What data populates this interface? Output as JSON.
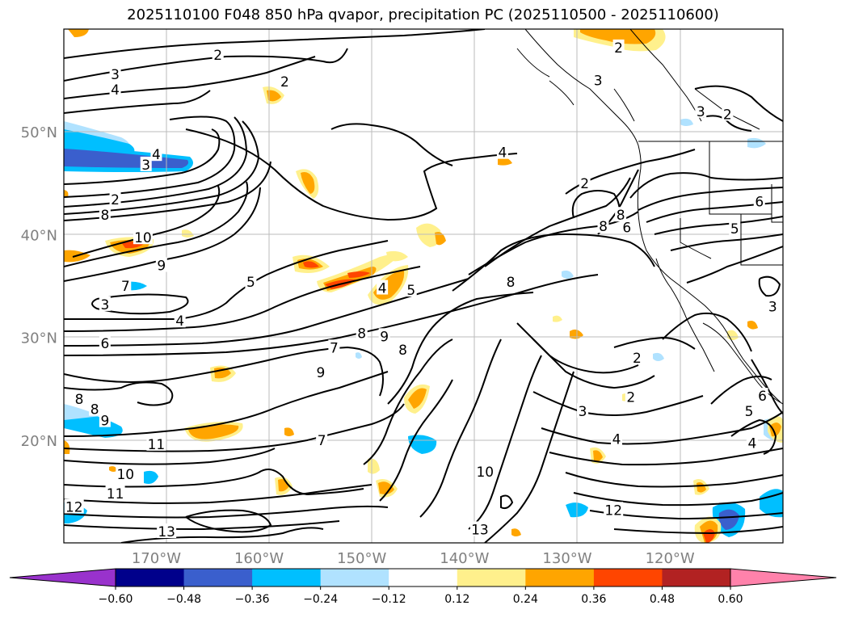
{
  "title": "2025110100 F048 850 hPa qvapor, precipitation PC (2025110500 - 2025110600)",
  "map": {
    "lon_range": [
      -179,
      -109
    ],
    "lat_range": [
      10,
      60
    ],
    "lon_ticks": [
      {
        "lon": -170,
        "label": "170°W"
      },
      {
        "lon": -160,
        "label": "160°W"
      },
      {
        "lon": -150,
        "label": "150°W"
      },
      {
        "lon": -140,
        "label": "140°W"
      },
      {
        "lon": -130,
        "label": "130°W"
      },
      {
        "lon": -120,
        "label": "120°W"
      }
    ],
    "lat_ticks": [
      {
        "lat": 20,
        "label": "20°N"
      },
      {
        "lat": 30,
        "label": "30°N"
      },
      {
        "lat": 40,
        "label": "40°N"
      },
      {
        "lat": 50,
        "label": "50°N"
      }
    ],
    "grid": true,
    "contour_color": "#000000",
    "coast_color": "#000000",
    "contour_labels": [
      {
        "text": "2",
        "lon": -164,
        "lat": 57.5
      },
      {
        "text": "2",
        "lon": -157.5,
        "lat": 54.9
      },
      {
        "text": "3",
        "lon": -174,
        "lat": 55.6
      },
      {
        "text": "4",
        "lon": -174,
        "lat": 54.1
      },
      {
        "text": "4",
        "lon": -170,
        "lat": 47.8
      },
      {
        "text": "3",
        "lon": -171,
        "lat": 46.8
      },
      {
        "text": "2",
        "lon": -174,
        "lat": 43.4
      },
      {
        "text": "8",
        "lon": -175,
        "lat": 41.9
      },
      {
        "text": "10",
        "lon": -171.3,
        "lat": 39.7
      },
      {
        "text": "9",
        "lon": -169.5,
        "lat": 37.0
      },
      {
        "text": "7",
        "lon": -173,
        "lat": 35.0
      },
      {
        "text": "3",
        "lon": -175,
        "lat": 33.2
      },
      {
        "text": "4",
        "lon": -167.7,
        "lat": 31.6
      },
      {
        "text": "6",
        "lon": -175,
        "lat": 29.4
      },
      {
        "text": "5",
        "lon": -160.8,
        "lat": 35.4
      },
      {
        "text": "4",
        "lon": -148,
        "lat": 34.8
      },
      {
        "text": "5",
        "lon": -145.2,
        "lat": 34.6
      },
      {
        "text": "7",
        "lon": -152.7,
        "lat": 29.0
      },
      {
        "text": "8",
        "lon": -150,
        "lat": 30.4
      },
      {
        "text": "9",
        "lon": -147.8,
        "lat": 30.1
      },
      {
        "text": "8",
        "lon": -146,
        "lat": 28.8
      },
      {
        "text": "9",
        "lon": -154,
        "lat": 26.6
      },
      {
        "text": "8",
        "lon": -177.5,
        "lat": 24.0
      },
      {
        "text": "8",
        "lon": -176,
        "lat": 23.0
      },
      {
        "text": "9",
        "lon": -175,
        "lat": 21.9
      },
      {
        "text": "11",
        "lon": -170,
        "lat": 19.6
      },
      {
        "text": "10",
        "lon": -173,
        "lat": 16.7
      },
      {
        "text": "11",
        "lon": -174,
        "lat": 14.8
      },
      {
        "text": "12",
        "lon": -178,
        "lat": 13.5
      },
      {
        "text": "13",
        "lon": -169,
        "lat": 11.1
      },
      {
        "text": "13",
        "lon": -138.5,
        "lat": 11.3
      },
      {
        "text": "10",
        "lon": -138,
        "lat": 16.9
      },
      {
        "text": "12",
        "lon": -125.5,
        "lat": 13.2
      },
      {
        "text": "8",
        "lon": -135.5,
        "lat": 35.4
      },
      {
        "text": "4",
        "lon": -136.3,
        "lat": 48.0
      },
      {
        "text": "3",
        "lon": -127,
        "lat": 55.0
      },
      {
        "text": "2",
        "lon": -125,
        "lat": 58.2
      },
      {
        "text": "2",
        "lon": -128.3,
        "lat": 45.0
      },
      {
        "text": "3",
        "lon": -117,
        "lat": 52.0
      },
      {
        "text": "2",
        "lon": -114.4,
        "lat": 51.7
      },
      {
        "text": "8",
        "lon": -126.5,
        "lat": 40.8
      },
      {
        "text": "8",
        "lon": -124.8,
        "lat": 41.9
      },
      {
        "text": "6",
        "lon": -124.2,
        "lat": 40.7
      },
      {
        "text": "5",
        "lon": -113.7,
        "lat": 40.6
      },
      {
        "text": "6",
        "lon": -111.3,
        "lat": 43.2
      },
      {
        "text": "3",
        "lon": -110,
        "lat": 33.0
      },
      {
        "text": "2",
        "lon": -123.2,
        "lat": 28.0
      },
      {
        "text": "2",
        "lon": -123.8,
        "lat": 24.2
      },
      {
        "text": "3",
        "lon": -128.5,
        "lat": 22.8
      },
      {
        "text": "4",
        "lon": -125.2,
        "lat": 20.1
      },
      {
        "text": "6",
        "lon": -111,
        "lat": 24.3
      },
      {
        "text": "5",
        "lon": -112.3,
        "lat": 22.8
      },
      {
        "text": "4",
        "lon": -112,
        "lat": 19.7
      },
      {
        "text": "7",
        "lon": -153.9,
        "lat": 20.0
      }
    ]
  },
  "colorbar": {
    "levels": [
      "−0.60",
      "−0.48",
      "−0.36",
      "−0.24",
      "−0.12",
      "0.12",
      "0.24",
      "0.36",
      "0.48",
      "0.60"
    ],
    "under_color": "#9932cc",
    "colors": [
      "#00008b",
      "#3a5fcd",
      "#00bfff",
      "#b0e2ff",
      "#ffffff",
      "#fff08c",
      "#ffa500",
      "#ff4500",
      "#b22222"
    ],
    "over_color": "#ff82ab",
    "extend": "both"
  },
  "legend_colors": {
    "strong_negative": "#3a5fcd",
    "negative": "#00bfff",
    "weak_negative": "#b0e2ff",
    "weak_positive": "#fff08c",
    "positive": "#ffa500",
    "strong_positive": "#ff4500",
    "very_strong_positive": "#b22222",
    "max_positive": "#ff82ab"
  }
}
